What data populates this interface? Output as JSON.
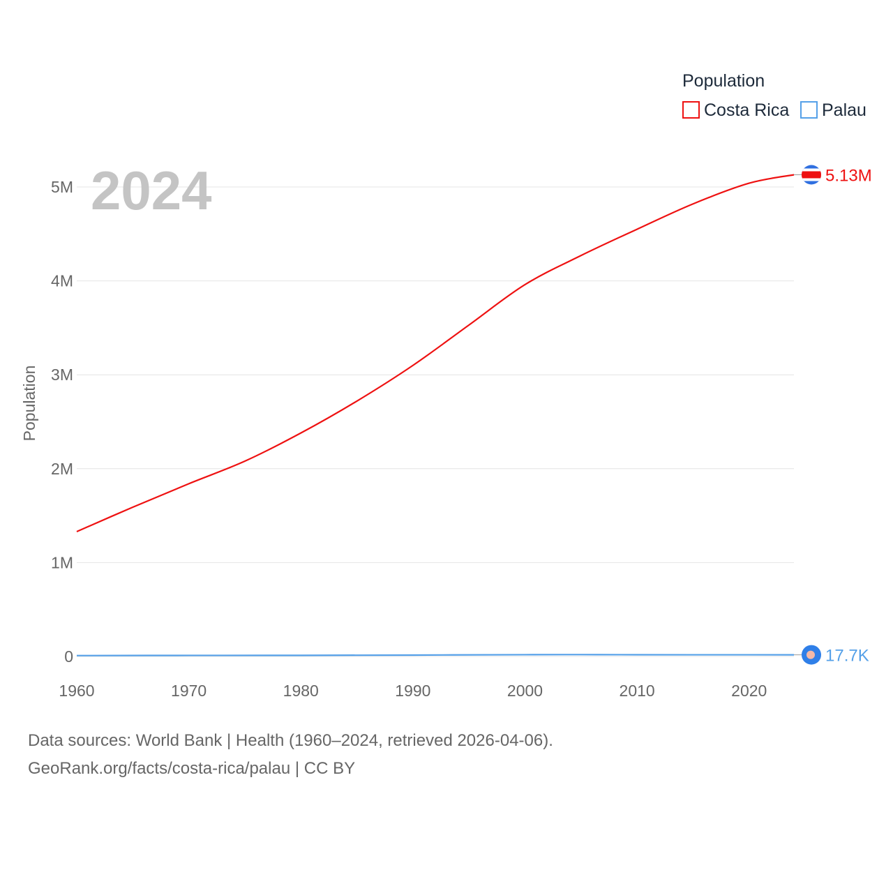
{
  "chart_data": {
    "type": "line",
    "title": "",
    "current_year": "2024",
    "xlabel": "",
    "ylabel": "Population",
    "xlim": [
      1960,
      2024
    ],
    "ylim": [
      0,
      5000000
    ],
    "x_ticks": [
      1960,
      1970,
      1980,
      1990,
      2000,
      2010,
      2020
    ],
    "y_ticks": [
      {
        "value": 0,
        "label": "0"
      },
      {
        "value": 1000000,
        "label": "1M"
      },
      {
        "value": 2000000,
        "label": "2M"
      },
      {
        "value": 3000000,
        "label": "3M"
      },
      {
        "value": 4000000,
        "label": "4M"
      },
      {
        "value": 5000000,
        "label": "5M"
      }
    ],
    "legend": {
      "title": "Population",
      "position": "top-right"
    },
    "series": [
      {
        "name": "Costa Rica",
        "color": "#ee1111",
        "end_label": "5.13M",
        "x": [
          1960,
          1965,
          1970,
          1975,
          1980,
          1985,
          1990,
          1995,
          2000,
          2005,
          2010,
          2015,
          2020,
          2024
        ],
        "values": [
          1330000,
          1590000,
          1840000,
          2080000,
          2380000,
          2720000,
          3100000,
          3530000,
          3960000,
          4270000,
          4550000,
          4820000,
          5040000,
          5130000
        ]
      },
      {
        "name": "Palau",
        "color": "#55a0e8",
        "end_label": "17.7K",
        "x": [
          1960,
          1970,
          1980,
          1990,
          2000,
          2005,
          2010,
          2020,
          2024
        ],
        "values": [
          9600,
          11500,
          12300,
          15100,
          19200,
          19800,
          18500,
          18000,
          17700
        ]
      }
    ]
  },
  "footer": {
    "source_line": "Data sources: World Bank | Health (1960–2024, retrieved 2026-04-06).",
    "attribution_line": "GeoRank.org/facts/costa-rica/palau | CC BY"
  }
}
